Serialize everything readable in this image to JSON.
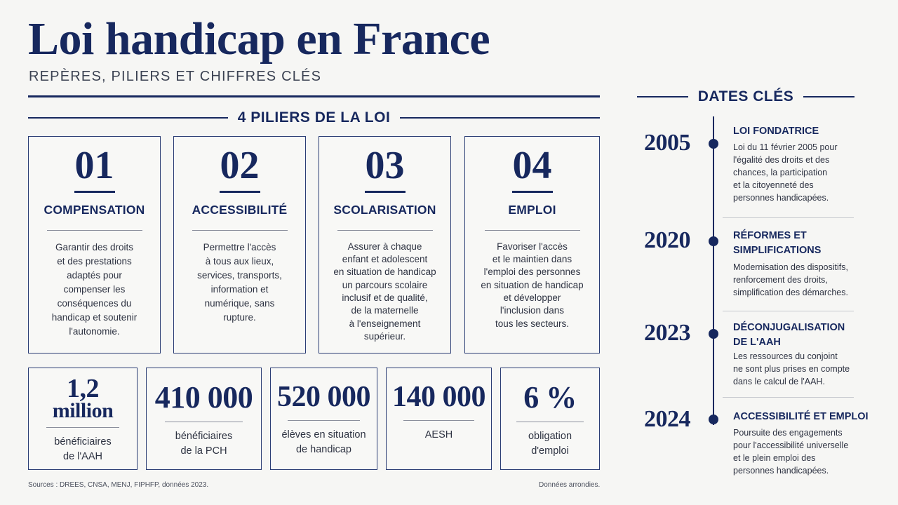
{
  "header": {
    "title": "Loi handicap en France",
    "subtitle": "REPÈRES, PILIERS ET CHIFFRES CLÉS"
  },
  "pillars_section": {
    "heading": "4 PILIERS DE LA LOI"
  },
  "pillars": [
    {
      "num": "01",
      "title": "COMPENSATION",
      "desc": "Garantir des droits\net des prestations\nadaptés pour\ncompenser les\nconséquences du\nhandicap et soutenir\nl'autonomie."
    },
    {
      "num": "02",
      "title": "ACCESSIBILITÉ",
      "desc": "Permettre l'accès\nà tous aux lieux,\nservices, transports,\ninformation et\nnumérique, sans\nrupture."
    },
    {
      "num": "03",
      "title": "SCOLARISATION",
      "desc": "Assurer à chaque\nenfant et adolescent\nen situation de handicap\nun parcours scolaire\ninclusif et de qualité,\nde la maternelle\nà l'enseignement\nsupérieur."
    },
    {
      "num": "04",
      "title": "EMPLOI",
      "desc": "Favoriser l'accès\net le maintien dans\nl'emploi des personnes\nen situation de handicap\net développer\nl'inclusion dans\ntous les secteurs."
    }
  ],
  "stats": [
    {
      "value_line1": "1,2",
      "value_line2": "million",
      "label": "bénéficiaires\nde l'AAH"
    },
    {
      "value": "410 000",
      "label": "bénéficiaires\nde la PCH"
    },
    {
      "value": "520 000",
      "label": "élèves en situation\nde handicap"
    },
    {
      "value": "140 000",
      "label": "AESH"
    },
    {
      "value": "6 %",
      "label": "obligation\nd'emploi"
    }
  ],
  "footer": {
    "sources": "Sources : DREES, CNSA, MENJ, FIPHFP, données 2023.",
    "note": "Données arrondies."
  },
  "timeline": {
    "heading": "DATES CLÉS",
    "events": [
      {
        "year": "2005",
        "title": "LOI FONDATRICE",
        "desc": "Loi du 11 février 2005 pour\nl'égalité des droits et des\nchances, la participation\net la citoyenneté des\npersonnes handicapées."
      },
      {
        "year": "2020",
        "title": "RÉFORMES ET\nSIMPLIFICATIONS",
        "desc": "Modernisation des dispositifs,\nrenforcement des droits,\nsimplification des démarches."
      },
      {
        "year": "2023",
        "title": "DÉCONJUGALISATION\nDE L'AAH",
        "desc": "Les ressources du conjoint\nne sont plus prises en compte\ndans le calcul de l'AAH."
      },
      {
        "year": "2024",
        "title": "ACCESSIBILITÉ ET EMPLOI",
        "desc": "Poursuite des engagements\npour l'accessibilité universelle\net le plein emploi des\npersonnes handicapées."
      }
    ]
  }
}
